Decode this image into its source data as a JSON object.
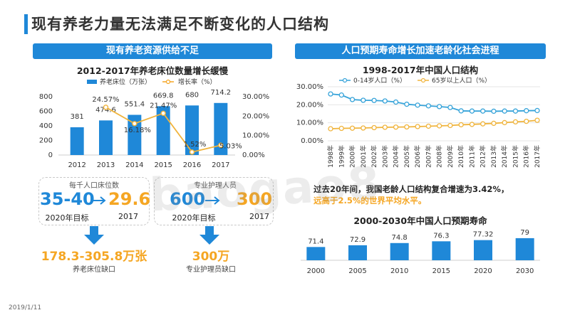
{
  "page": {
    "title": "现有养老力量无法满足不断变化的人口结构",
    "date": "2019/1/11",
    "watermark": "baogao8"
  },
  "left": {
    "banner": "现有养老资源供给不足",
    "stats": {
      "beds_caption": "每千人口床位数",
      "beds_target": "35-40",
      "beds_target_label": "2020年目标",
      "beds_current": "29.6",
      "beds_current_label": "2017",
      "beds_gap": "178.3-305.8万张",
      "beds_gap_label": "养老床位缺口",
      "staff_caption": "专业护理人员",
      "staff_target": "600",
      "staff_target_label": "2020年目标",
      "staff_current": "300",
      "staff_current_label": "2017",
      "staff_gap": "300万",
      "staff_gap_label": "专业护理员缺口"
    }
  },
  "right": {
    "banner": "人口预期寿命增长加速老龄化社会进程",
    "note": {
      "part1": "过去20年间，我国老龄人口结构复合增速为3.42%，",
      "part2": "远高于2.5%的世界平均水平。"
    }
  },
  "colors": {
    "blue": "#1f88d8",
    "orange": "#f5a623",
    "teal": "#36a3d9",
    "gold": "#f0b43c"
  },
  "chart_data": [
    {
      "type": "bar",
      "title": "2012-2017年养老床位数量增长缓慢",
      "categories": [
        "2012",
        "2013",
        "2014",
        "2015",
        "2016",
        "2017"
      ],
      "series": [
        {
          "name": "养老床位（万张）",
          "values": [
            381,
            474.6,
            551.4,
            669.8,
            680,
            714.2
          ],
          "labels": [
            "381",
            "474.6",
            "551.4",
            "669.8",
            "680",
            "714.2"
          ]
        },
        {
          "name": "增长率（%）",
          "type": "line",
          "axis": "right",
          "values": [
            null,
            24.57,
            16.18,
            21.47,
            1.52,
            5.03
          ],
          "labels": [
            "",
            "24.57%",
            "16.18%",
            "21.47%",
            "1.52%",
            "5.03%"
          ]
        }
      ],
      "y_ticks": [
        "0",
        "200",
        "400",
        "600",
        "800"
      ],
      "ylim": [
        0,
        800
      ],
      "y2_ticks": [
        "0.00%",
        "10.00%",
        "20.00%",
        "30.00%"
      ],
      "y2lim": [
        0,
        30
      ],
      "legend": "top"
    },
    {
      "type": "line",
      "title": "1998-2017年中国人口结构",
      "categories": [
        "1998年",
        "1999年",
        "2000年",
        "2001年",
        "2002年",
        "2003年",
        "2004年",
        "2005年",
        "2006年",
        "2007年",
        "2008年",
        "2009年",
        "2010年",
        "2011年",
        "2012年",
        "2013年",
        "2014年",
        "2015年",
        "2016年",
        "2017年"
      ],
      "series": [
        {
          "name": "0-14岁人口（%）",
          "values": [
            26.0,
            25.4,
            22.9,
            22.5,
            22.4,
            22.1,
            21.5,
            20.3,
            19.8,
            19.4,
            19.0,
            18.5,
            16.6,
            16.5,
            16.5,
            16.4,
            16.5,
            16.5,
            16.7,
            16.8
          ]
        },
        {
          "name": "65岁以上人口（%）",
          "values": [
            6.7,
            6.9,
            7.0,
            7.1,
            7.3,
            7.5,
            7.6,
            7.7,
            7.9,
            8.1,
            8.3,
            8.5,
            8.9,
            9.1,
            9.4,
            9.7,
            10.1,
            10.5,
            10.8,
            11.4
          ]
        }
      ],
      "y_ticks": [
        "0.00%",
        "10.00%",
        "20.00%",
        "30.00%"
      ],
      "ylim": [
        0,
        30
      ],
      "legend": "top"
    },
    {
      "type": "bar",
      "title": "2000-2030年中国人口预期寿命",
      "categories": [
        "2000",
        "2005",
        "2010",
        "2015",
        "2020",
        "2030"
      ],
      "values": [
        71.4,
        72.9,
        74.8,
        76.3,
        77.32,
        79
      ],
      "labels": [
        "71.4",
        "72.9",
        "74.8",
        "76.3",
        "77.32",
        "79"
      ],
      "ylim": [
        60,
        82
      ]
    }
  ]
}
